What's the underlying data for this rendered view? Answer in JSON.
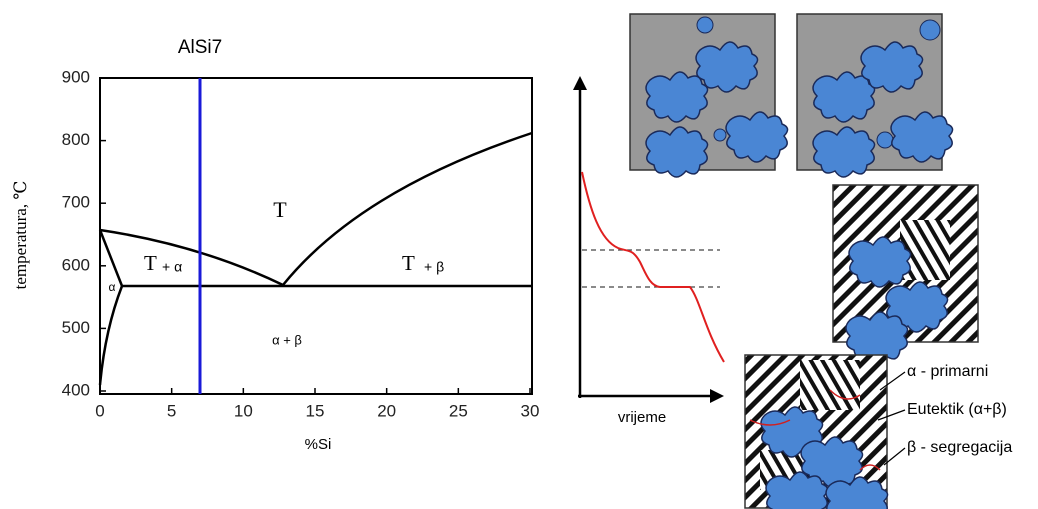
{
  "phase_diagram": {
    "title": "AlSi7",
    "y_axis_label": "temperatura, ℃",
    "x_axis_label": "%Si",
    "xticks": [
      0,
      5,
      10,
      15,
      20,
      25,
      30
    ],
    "yticks": [
      400,
      500,
      600,
      700,
      800,
      900
    ],
    "regions": {
      "liquid": "T",
      "liquid_alpha": [
        "T",
        "+ α"
      ],
      "liquid_beta": [
        "T",
        "+ β"
      ],
      "alpha": "α",
      "alpha_beta": "α + β"
    }
  },
  "cooling_curve": {
    "x_axis_label": "vrijeme"
  },
  "microstructure": {
    "labels": [
      "α - primarni",
      "Eutektik (α+β)",
      "β - segregacija"
    ]
  }
}
